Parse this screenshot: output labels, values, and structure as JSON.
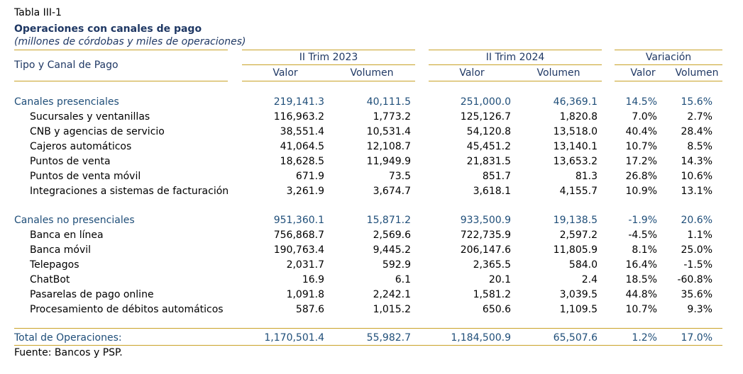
{
  "table_number": "Tabla III-1",
  "title": "Operaciones con canales de pago",
  "subtitle": "(millones de córdobas y miles de operaciones)",
  "header": {
    "row_label": "Tipo y Canal de Pago",
    "groups": [
      "II Trim 2023",
      "II Trim 2024",
      "Variación"
    ],
    "subcols": [
      "Valor",
      "Volumen",
      "Valor",
      "Volumen",
      "Valor",
      "Volumen"
    ]
  },
  "sections": [
    {
      "label": "Canales presenciales",
      "values": [
        "219,141.3",
        "40,111.5",
        "251,000.0",
        "46,369.1",
        "14.5%",
        "15.6%"
      ],
      "rows": [
        {
          "label": "Sucursales y ventanillas",
          "values": [
            "116,963.2",
            "1,773.2",
            "125,126.7",
            "1,820.8",
            "7.0%",
            "2.7%"
          ]
        },
        {
          "label": "CNB y agencias de servicio",
          "values": [
            "38,551.4",
            "10,531.4",
            "54,120.8",
            "13,518.0",
            "40.4%",
            "28.4%"
          ]
        },
        {
          "label": "Cajeros automáticos",
          "values": [
            "41,064.5",
            "12,108.7",
            "45,451.2",
            "13,140.1",
            "10.7%",
            "8.5%"
          ]
        },
        {
          "label": "Puntos de venta",
          "values": [
            "18,628.5",
            "11,949.9",
            "21,831.5",
            "13,653.2",
            "17.2%",
            "14.3%"
          ]
        },
        {
          "label": "Puntos de venta móvil",
          "values": [
            "671.9",
            "73.5",
            "851.7",
            "81.3",
            "26.8%",
            "10.6%"
          ]
        },
        {
          "label": "Integraciones a sistemas de facturación",
          "values": [
            "3,261.9",
            "3,674.7",
            "3,618.1",
            "4,155.7",
            "10.9%",
            "13.1%"
          ]
        }
      ]
    },
    {
      "label": "Canales no presenciales",
      "values": [
        "951,360.1",
        "15,871.2",
        "933,500.9",
        "19,138.5",
        "-1.9%",
        "20.6%"
      ],
      "rows": [
        {
          "label": "Banca en línea",
          "values": [
            "756,868.7",
            "2,569.6",
            "722,735.9",
            "2,597.2",
            "-4.5%",
            "1.1%"
          ]
        },
        {
          "label": "Banca móvil",
          "values": [
            "190,763.4",
            "9,445.2",
            "206,147.6",
            "11,805.9",
            "8.1%",
            "25.0%"
          ]
        },
        {
          "label": "Telepagos",
          "values": [
            "2,031.7",
            "592.9",
            "2,365.5",
            "584.0",
            "16.4%",
            "-1.5%"
          ]
        },
        {
          "label": "ChatBot",
          "values": [
            "16.9",
            "6.1",
            "20.1",
            "2.4",
            "18.5%",
            "-60.8%"
          ]
        },
        {
          "label": "Pasarelas de pago online",
          "values": [
            "1,091.8",
            "2,242.1",
            "1,581.2",
            "3,039.5",
            "44.8%",
            "35.6%"
          ]
        },
        {
          "label": "Procesamiento de débitos automáticos",
          "values": [
            "587.6",
            "1,015.2",
            "650.6",
            "1,109.5",
            "10.7%",
            "9.3%"
          ]
        }
      ]
    }
  ],
  "total": {
    "label": "Total de Operaciones:",
    "values": [
      "1,170,501.4",
      "55,982.7",
      "1,184,500.9",
      "65,507.6",
      "1.2%",
      "17.0%"
    ]
  },
  "source": "Fuente: Bancos y PSP.",
  "colors": {
    "rule": "#c9a227",
    "section_text": "#1f4e79",
    "title_text": "#1f3864"
  }
}
